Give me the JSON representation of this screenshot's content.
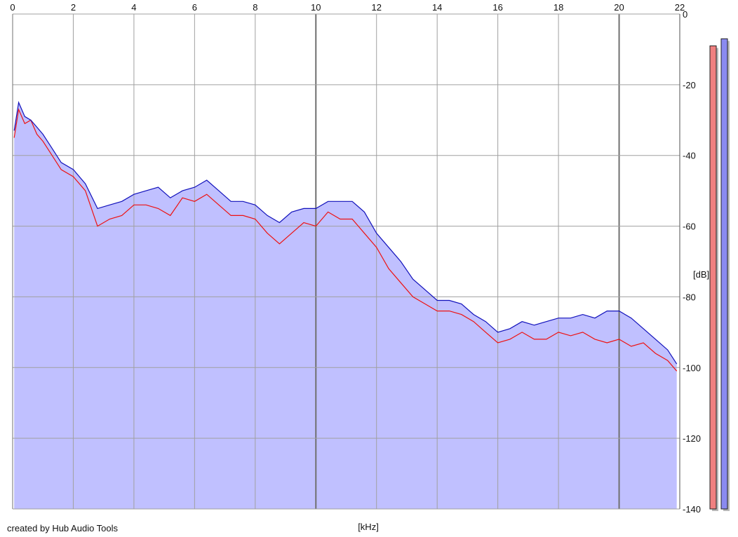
{
  "colors": {
    "background": "#ffffff",
    "fill": "#c0c0ff",
    "channel_left": "#ee1111",
    "channel_right": "#1111bb",
    "grid": "#a0a0a0",
    "grid_major": "#707070",
    "meter_left": "#f08080",
    "meter_right": "#8a8af0",
    "meter_shadow": "#b8b8b8"
  },
  "credit": "created by Hub Audio Tools",
  "chart_data": {
    "type": "line",
    "xlabel": "[kHz]",
    "ylabel": "[dB]",
    "xlim": [
      0,
      22
    ],
    "ylim": [
      -140,
      0
    ],
    "x_ticks": [
      0,
      2,
      4,
      6,
      8,
      10,
      12,
      14,
      16,
      18,
      20,
      22
    ],
    "x_tick_labels": [
      "0",
      "2",
      "4",
      "6",
      "8",
      "10",
      "12",
      "14",
      "16",
      "18",
      "20",
      "22"
    ],
    "y_ticks": [
      0,
      -20,
      -40,
      -60,
      -80,
      -100,
      -120,
      -140
    ],
    "y_tick_labels": [
      "0",
      "-20",
      "-40",
      "-60",
      "-80",
      "-100",
      "-120",
      "-140"
    ],
    "grid": true,
    "x_axis_labels_top": true,
    "y_axis_position": "right",
    "series": [
      {
        "channel": "left",
        "color": "#ee1111",
        "x": [
          0.05,
          0.2,
          0.4,
          0.6,
          0.8,
          1.0,
          1.3,
          1.6,
          2.0,
          2.4,
          2.8,
          3.2,
          3.6,
          4.0,
          4.4,
          4.8,
          5.2,
          5.6,
          6.0,
          6.4,
          6.8,
          7.2,
          7.6,
          8.0,
          8.4,
          8.8,
          9.2,
          9.6,
          10.0,
          10.4,
          10.8,
          11.2,
          11.6,
          12.0,
          12.4,
          12.8,
          13.2,
          13.6,
          14.0,
          14.4,
          14.8,
          15.2,
          15.6,
          16.0,
          16.4,
          16.8,
          17.2,
          17.6,
          18.0,
          18.4,
          18.8,
          19.2,
          19.6,
          20.0,
          20.4,
          20.8,
          21.2,
          21.6,
          21.9
        ],
        "y": [
          -35,
          -27,
          -31,
          -30,
          -34,
          -36,
          -40,
          -44,
          -46,
          -50,
          -60,
          -58,
          -57,
          -54,
          -54,
          -55,
          -57,
          -52,
          -53,
          -51,
          -54,
          -57,
          -57,
          -58,
          -62,
          -65,
          -62,
          -59,
          -60,
          -56,
          -58,
          -58,
          -62,
          -66,
          -72,
          -76,
          -80,
          -82,
          -84,
          -84,
          -85,
          -87,
          -90,
          -93,
          -92,
          -90,
          -92,
          -92,
          -90,
          -91,
          -90,
          -92,
          -93,
          -92,
          -94,
          -93,
          -96,
          -98,
          -101
        ]
      },
      {
        "channel": "right",
        "color": "#1111bb",
        "x": [
          0.05,
          0.2,
          0.4,
          0.6,
          0.8,
          1.0,
          1.3,
          1.6,
          2.0,
          2.4,
          2.8,
          3.2,
          3.6,
          4.0,
          4.4,
          4.8,
          5.2,
          5.6,
          6.0,
          6.4,
          6.8,
          7.2,
          7.6,
          8.0,
          8.4,
          8.8,
          9.2,
          9.6,
          10.0,
          10.4,
          10.8,
          11.2,
          11.6,
          12.0,
          12.4,
          12.8,
          13.2,
          13.6,
          14.0,
          14.4,
          14.8,
          15.2,
          15.6,
          16.0,
          16.4,
          16.8,
          17.2,
          17.6,
          18.0,
          18.4,
          18.8,
          19.2,
          19.6,
          20.0,
          20.4,
          20.8,
          21.2,
          21.6,
          21.9
        ],
        "y": [
          -33,
          -25,
          -29,
          -30,
          -32,
          -34,
          -38,
          -42,
          -44,
          -48,
          -55,
          -54,
          -53,
          -51,
          -50,
          -49,
          -52,
          -50,
          -49,
          -47,
          -50,
          -53,
          -53,
          -54,
          -57,
          -59,
          -56,
          -55,
          -55,
          -53,
          -53,
          -53,
          -56,
          -62,
          -66,
          -70,
          -75,
          -78,
          -81,
          -81,
          -82,
          -85,
          -87,
          -90,
          -89,
          -87,
          -88,
          -87,
          -86,
          -86,
          -85,
          -86,
          -84,
          -84,
          -86,
          -89,
          -92,
          -95,
          -99
        ]
      }
    ],
    "level_meters": [
      {
        "channel": "left",
        "value_db": -9
      },
      {
        "channel": "right",
        "value_db": -7
      }
    ]
  }
}
